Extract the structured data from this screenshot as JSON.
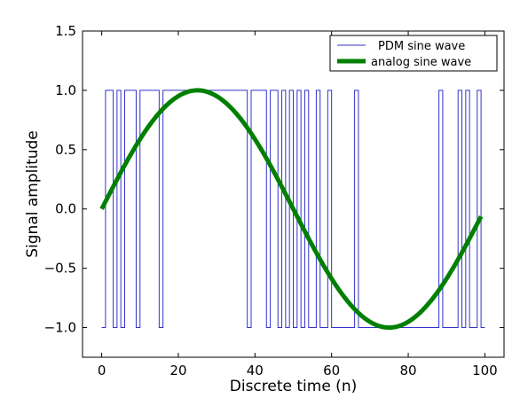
{
  "chart_data": {
    "type": "line",
    "title": "",
    "xlabel": "Discrete time (n)",
    "ylabel": "Signal amplitude",
    "xlim": [
      -5,
      105
    ],
    "ylim": [
      -1.25,
      1.5
    ],
    "xticks": [
      0,
      20,
      40,
      60,
      80,
      100
    ],
    "yticks": [
      -1.0,
      -0.5,
      0.0,
      0.5,
      1.0,
      1.5
    ],
    "xtick_labels": [
      "0",
      "20",
      "40",
      "60",
      "80",
      "100"
    ],
    "ytick_labels": [
      "−1.0",
      "−0.5",
      "0.0",
      "0.5",
      "1.0",
      "1.5"
    ],
    "grid": false,
    "legend_position": "top-right",
    "series": [
      {
        "name": "PDM sine wave",
        "color": "#3333cc",
        "style": "step",
        "x": [
          0,
          1,
          2,
          3,
          4,
          5,
          6,
          7,
          8,
          9,
          10,
          11,
          12,
          13,
          14,
          15,
          16,
          17,
          18,
          19,
          20,
          21,
          22,
          23,
          24,
          25,
          26,
          27,
          28,
          29,
          30,
          31,
          32,
          33,
          34,
          35,
          36,
          37,
          38,
          39,
          40,
          41,
          42,
          43,
          44,
          45,
          46,
          47,
          48,
          49,
          50,
          51,
          52,
          53,
          54,
          55,
          56,
          57,
          58,
          59,
          60,
          61,
          62,
          63,
          64,
          65,
          66,
          67,
          68,
          69,
          70,
          71,
          72,
          73,
          74,
          75,
          76,
          77,
          78,
          79,
          80,
          81,
          82,
          83,
          84,
          85,
          86,
          87,
          88,
          89,
          90,
          91,
          92,
          93,
          94,
          95,
          96,
          97,
          98,
          99
        ],
        "values": [
          -1,
          1,
          1,
          -1,
          1,
          -1,
          1,
          1,
          1,
          -1,
          1,
          1,
          1,
          1,
          1,
          -1,
          1,
          1,
          1,
          1,
          1,
          1,
          1,
          1,
          1,
          1,
          1,
          1,
          1,
          1,
          1,
          1,
          1,
          1,
          1,
          1,
          1,
          1,
          -1,
          1,
          1,
          1,
          1,
          -1,
          1,
          1,
          -1,
          1,
          -1,
          1,
          -1,
          1,
          -1,
          1,
          -1,
          -1,
          1,
          -1,
          -1,
          1,
          -1,
          -1,
          -1,
          -1,
          -1,
          -1,
          1,
          -1,
          -1,
          -1,
          -1,
          -1,
          -1,
          -1,
          -1,
          -1,
          -1,
          -1,
          -1,
          -1,
          -1,
          -1,
          -1,
          -1,
          -1,
          -1,
          -1,
          -1,
          1,
          -1,
          -1,
          -1,
          -1,
          1,
          -1,
          1,
          -1,
          -1,
          1,
          -1
        ]
      },
      {
        "name": "analog sine wave",
        "color": "#008000",
        "style": "smooth",
        "x_range": [
          0,
          99
        ],
        "period": 100,
        "amplitude": 1
      }
    ]
  }
}
